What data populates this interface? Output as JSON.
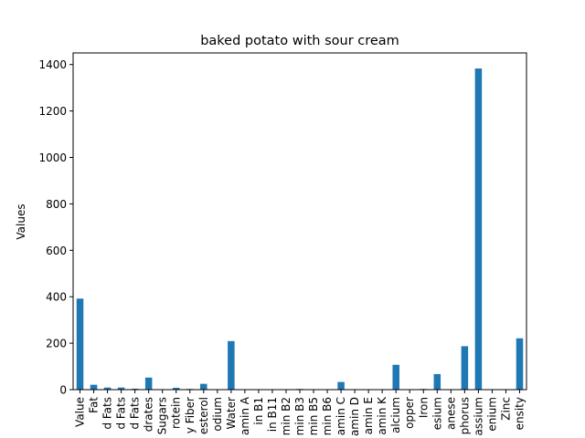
{
  "chart_data": {
    "type": "bar",
    "title": "baked potato with sour cream",
    "xlabel": "",
    "ylabel": "Values",
    "ylim": [
      0,
      1450
    ],
    "yticks": [
      0,
      200,
      400,
      600,
      800,
      1000,
      1200,
      1400
    ],
    "grid": false,
    "legend": "none",
    "bar_color": "#1f77b4",
    "categories": [
      "Value",
      "Fat",
      "d Fats",
      "d Fats",
      "d Fats",
      "drates",
      "Sugars",
      "rotein",
      "y Fiber",
      "esterol",
      "odium",
      "Water",
      "amin A",
      "in B1",
      "in B11",
      "min B2",
      "min B3",
      "min B5",
      "min B6",
      "amin C",
      "amin D",
      "amin E",
      "amin K",
      "alcium",
      "opper",
      "Iron",
      "esium",
      "anese",
      "phorus",
      "assium",
      "enium",
      "Zinc",
      "ensity"
    ],
    "values": [
      392,
      21,
      9,
      9,
      4,
      52,
      1,
      8,
      3,
      25,
      1,
      209,
      0.3,
      0.2,
      0.2,
      0.2,
      3,
      1,
      0.5,
      33,
      0,
      0.1,
      1,
      107,
      0.5,
      3,
      67,
      0.5,
      187,
      1383,
      0.5,
      1,
      221
    ]
  }
}
